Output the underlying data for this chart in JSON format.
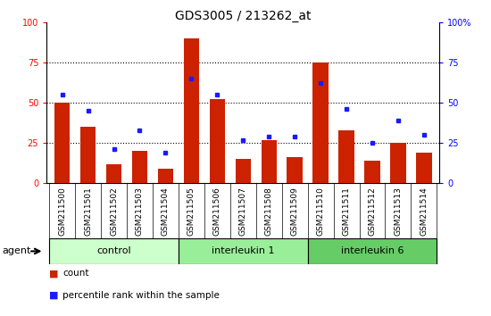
{
  "title": "GDS3005 / 213262_at",
  "samples": [
    "GSM211500",
    "GSM211501",
    "GSM211502",
    "GSM211503",
    "GSM211504",
    "GSM211505",
    "GSM211506",
    "GSM211507",
    "GSM211508",
    "GSM211509",
    "GSM211510",
    "GSM211511",
    "GSM211512",
    "GSM211513",
    "GSM211514"
  ],
  "count_values": [
    50,
    35,
    12,
    20,
    9,
    90,
    52,
    15,
    27,
    16,
    75,
    33,
    14,
    25,
    19
  ],
  "percentile_values": [
    55,
    45,
    21,
    33,
    19,
    65,
    55,
    27,
    29,
    29,
    62,
    46,
    25,
    39,
    30
  ],
  "groups": [
    {
      "label": "control",
      "start": 0,
      "end": 5,
      "color": "#ccffcc"
    },
    {
      "label": "interleukin 1",
      "start": 5,
      "end": 10,
      "color": "#99ee99"
    },
    {
      "label": "interleukin 6",
      "start": 10,
      "end": 15,
      "color": "#66cc66"
    }
  ],
  "bar_color": "#cc2200",
  "dot_color": "#1a1aff",
  "ylim": [
    0,
    100
  ],
  "yticks": [
    0,
    25,
    50,
    75,
    100
  ],
  "bg_color": "#d8d8d8",
  "plot_bg": "white",
  "agent_label": "agent",
  "legend_count_label": "count",
  "legend_pct_label": "percentile rank within the sample",
  "title_fontsize": 10,
  "tick_fontsize": 7,
  "xtick_fontsize": 6.5,
  "group_fontsize": 8,
  "legend_fontsize": 7.5
}
